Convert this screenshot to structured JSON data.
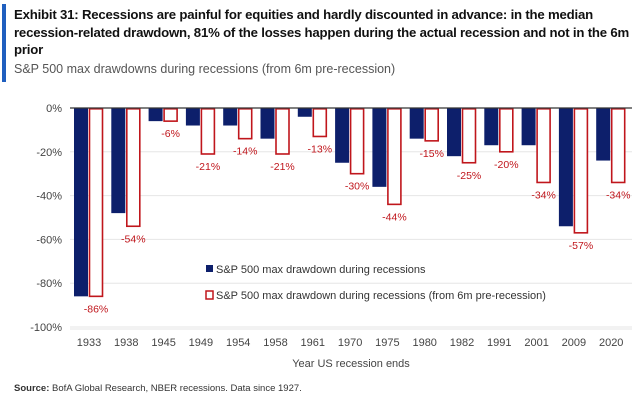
{
  "title": "Exhibit 31: Recessions are painful for equities and hardly discounted  in advance: in the median recession-related drawdown, 81% of the losses happen during the actual recession and not in the 6m prior",
  "subtitle": "S&P 500 max drawdowns during recessions (from 6m pre-recession)",
  "source_label": "Source:",
  "source_text": " BofA Global Research, NBER recessions. Data since 1927.",
  "colors": {
    "accent": "#1f5fbf",
    "series1": "#0d1f6b",
    "series2": "#c0161c"
  },
  "chart_data": {
    "type": "bar",
    "xlabel": "Year US recession ends",
    "ylabel": "",
    "ylim": [
      -100,
      0
    ],
    "yticks": [
      "0%",
      "-20%",
      "-40%",
      "-60%",
      "-80%",
      "-100%"
    ],
    "ytick_values": [
      0,
      -20,
      -40,
      -60,
      -80,
      -100
    ],
    "grid": true,
    "legend_placement": "bottom-center",
    "categories": [
      "1933",
      "1938",
      "1945",
      "1949",
      "1954",
      "1958",
      "1961",
      "1970",
      "1975",
      "1980",
      "1982",
      "1991",
      "2001",
      "2009",
      "2020"
    ],
    "series": [
      {
        "name": "S&P 500 max drawdown during recessions",
        "style": "filled",
        "values": [
          -86,
          -48,
          -6,
          -8,
          -8,
          -14,
          -4,
          -25,
          -36,
          -14,
          -22,
          -17,
          -17,
          -54,
          -24
        ]
      },
      {
        "name": "S&P 500 max drawdown during recessions (from 6m pre-recession)",
        "style": "outline",
        "values": [
          -86,
          -54,
          -6,
          -21,
          -14,
          -21,
          -13,
          -30,
          -44,
          -15,
          -25,
          -20,
          -34,
          -57,
          -34
        ],
        "data_labels": [
          "-86%",
          "-54%",
          "-6%",
          "-21%",
          "-14%",
          "-21%",
          "-13%",
          "-30%",
          "-44%",
          "-15%",
          "-25%",
          "-20%",
          "-34%",
          "-57%",
          "-34%"
        ]
      }
    ]
  }
}
